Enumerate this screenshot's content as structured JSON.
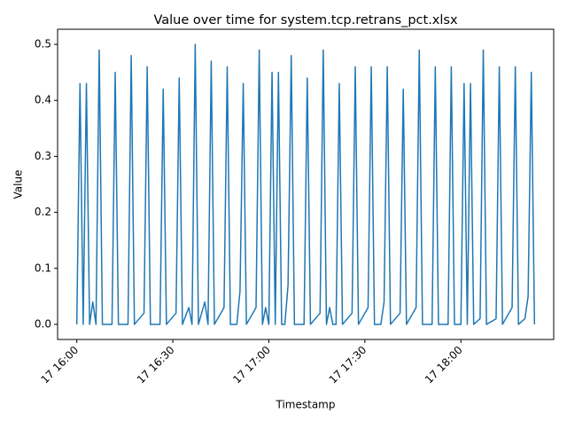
{
  "chart_data": {
    "type": "line",
    "title": "Value over time for system.tcp.retrans_pct.xlsx",
    "xlabel": "Timestamp",
    "ylabel": "Value",
    "color": "#1f77b4",
    "x": [
      "17 16:00",
      "17 16:01",
      "17 16:02",
      "17 16:03",
      "17 16:04",
      "17 16:05",
      "17 16:06",
      "17 16:07",
      "17 16:08",
      "17 16:11",
      "17 16:12",
      "17 16:13",
      "17 16:16",
      "17 16:17",
      "17 16:18",
      "17 16:21",
      "17 16:22",
      "17 16:23",
      "17 16:26",
      "17 16:27",
      "17 16:28",
      "17 16:31",
      "17 16:32",
      "17 16:33",
      "17 16:35",
      "17 16:36",
      "17 16:37",
      "17 16:38",
      "17 16:40",
      "17 16:41",
      "17 16:42",
      "17 16:43",
      "17 16:46",
      "17 16:47",
      "17 16:48",
      "17 16:50",
      "17 16:51",
      "17 16:52",
      "17 16:53",
      "17 16:56",
      "17 16:57",
      "17 16:58",
      "17 16:59",
      "17 17:00",
      "17 17:01",
      "17 17:02",
      "17 17:03",
      "17 17:04",
      "17 17:05",
      "17 17:06",
      "17 17:07",
      "17 17:08",
      "17 17:11",
      "17 17:12",
      "17 17:13",
      "17 17:16",
      "17 17:17",
      "17 17:18",
      "17 17:19",
      "17 17:20",
      "17 17:21",
      "17 17:22",
      "17 17:23",
      "17 17:26",
      "17 17:27",
      "17 17:28",
      "17 17:31",
      "17 17:32",
      "17 17:33",
      "17 17:35",
      "17 17:36",
      "17 17:37",
      "17 17:38",
      "17 17:41",
      "17 17:42",
      "17 17:43",
      "17 17:46",
      "17 17:47",
      "17 17:48",
      "17 17:51",
      "17 17:52",
      "17 17:53",
      "17 17:56",
      "17 17:57",
      "17 17:58",
      "17 18:00",
      "17 18:01",
      "17 18:02",
      "17 18:03",
      "17 18:04",
      "17 18:06",
      "17 18:07",
      "17 18:08",
      "17 18:11",
      "17 18:12",
      "17 18:13",
      "17 18:16",
      "17 18:17",
      "17 18:18",
      "17 18:20",
      "17 18:21",
      "17 18:22",
      "17 18:23"
    ],
    "values": [
      0,
      0.43,
      0,
      0.43,
      0,
      0.04,
      0,
      0.49,
      0,
      0,
      0.45,
      0,
      0,
      0.48,
      0,
      0.02,
      0.46,
      0,
      0,
      0.42,
      0,
      0.02,
      0.44,
      0,
      0.03,
      0,
      0.5,
      0,
      0.04,
      0,
      0.47,
      0,
      0.03,
      0.46,
      0,
      0,
      0.06,
      0.43,
      0,
      0.03,
      0.49,
      0,
      0.03,
      0,
      0.45,
      0,
      0.45,
      0,
      0,
      0.07,
      0.48,
      0,
      0,
      0.44,
      0,
      0.02,
      0.49,
      0,
      0.03,
      0,
      0,
      0.43,
      0,
      0.02,
      0.46,
      0,
      0.03,
      0.46,
      0,
      0,
      0.04,
      0.46,
      0,
      0.02,
      0.42,
      0,
      0.03,
      0.49,
      0,
      0,
      0.46,
      0,
      0,
      0.46,
      0,
      0,
      0.43,
      0,
      0.43,
      0,
      0.01,
      0.49,
      0,
      0.01,
      0.46,
      0,
      0.03,
      0.46,
      0,
      0.01,
      0.05,
      0.45,
      0
    ],
    "xlim": [
      "17 15:54",
      "17 18:29"
    ],
    "xticks": [
      "17 16:00",
      "17 16:30",
      "17 17:00",
      "17 17:30",
      "17 18:00"
    ],
    "ylim": [
      -0.027,
      0.527
    ],
    "yticks": [
      {
        "value": 0,
        "label": "0.0"
      },
      0.1,
      0.2,
      0.3,
      0.4,
      0.5
    ],
    "grid": false
  }
}
